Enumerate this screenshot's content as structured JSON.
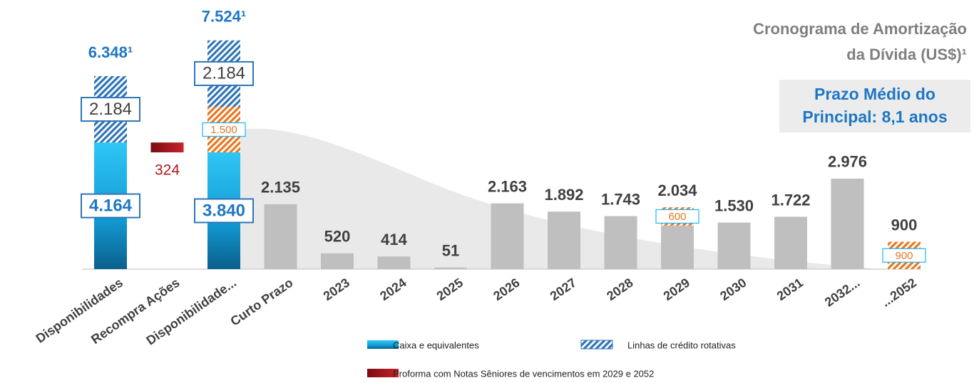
{
  "chart_data": {
    "type": "stacked_bar",
    "title_lines": [
      "Cronograma de Amortização",
      "da Dívida (US$)¹"
    ],
    "annotation_lines": [
      "Prazo Médio do",
      "Principal: 8,1 anos"
    ],
    "categories": [
      "Disponibilidades",
      "Recompra Ações",
      "Disponibilidade...",
      "Curto Prazo",
      "2023",
      "2024",
      "2025",
      "2026",
      "2027",
      "2028",
      "2029",
      "2030",
      "2031",
      "2032...",
      "...2052"
    ],
    "series": [
      {
        "name": "Caixa e equivalentes",
        "color": "#1ab8f0",
        "values": [
          4164,
          null,
          3840,
          null,
          null,
          null,
          null,
          null,
          null,
          null,
          null,
          null,
          null,
          null,
          null
        ],
        "value_labels": [
          "4.164",
          null,
          "3.840",
          null,
          null,
          null,
          null,
          null,
          null,
          null,
          null,
          null,
          null,
          null,
          null
        ]
      },
      {
        "name": "Linhas de crédito rotativas",
        "color": "#2e75b6",
        "pattern": "hatch",
        "values": [
          2184,
          null,
          2184,
          null,
          null,
          null,
          null,
          null,
          null,
          null,
          null,
          null,
          null,
          null,
          null
        ],
        "value_labels": [
          "2.184",
          null,
          "2.184",
          null,
          null,
          null,
          null,
          null,
          null,
          null,
          null,
          null,
          null,
          null,
          null
        ]
      },
      {
        "name": "Proforma com Notas Sêniores de vencimentos em 2029 e 2052",
        "color": "#b0191e",
        "values": [
          null,
          324,
          null,
          null,
          null,
          null,
          null,
          null,
          null,
          null,
          null,
          null,
          null,
          null,
          null
        ]
      },
      {
        "color": "#e87722",
        "pattern": "hatch",
        "values": [
          null,
          null,
          1500,
          null,
          null,
          null,
          null,
          null,
          null,
          null,
          600,
          null,
          null,
          null,
          900
        ],
        "value_labels": [
          null,
          null,
          "1.500",
          null,
          null,
          null,
          null,
          null,
          null,
          null,
          "600",
          null,
          null,
          null,
          "900"
        ]
      },
      {
        "color": "#bfbfbf",
        "values": [
          null,
          null,
          null,
          2135,
          520,
          414,
          51,
          2163,
          1892,
          1743,
          1434,
          1530,
          1722,
          2976,
          null
        ]
      }
    ],
    "totals": {
      "values": [
        6348,
        null,
        7524,
        2135,
        520,
        414,
        51,
        2163,
        1892,
        1743,
        2034,
        1530,
        1722,
        2976,
        900
      ],
      "value_labels": [
        "6.348¹",
        null,
        "7.524¹",
        "2.135",
        "520",
        "414",
        "51",
        "2.163",
        "1.892",
        "1.743",
        "2.034",
        "1.530",
        "1.722",
        "2.976",
        "900"
      ],
      "colors": [
        "#1f77c4",
        null,
        "#1f77c4",
        "#404040",
        "#404040",
        "#404040",
        "#404040",
        "#404040",
        "#404040",
        "#404040",
        "#404040",
        "#404040",
        "#404040",
        "#404040",
        "#404040"
      ]
    }
  }
}
